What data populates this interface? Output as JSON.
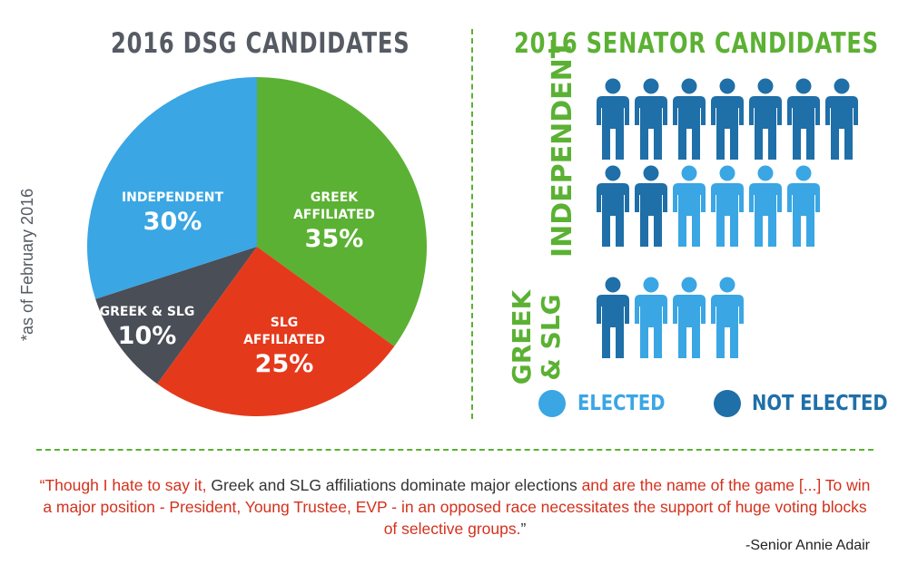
{
  "pie_title": "2016 DSG CANDIDATES",
  "as_of_note": "*as of February 2016",
  "senator_title": "2016 SENATOR CANDIDATES",
  "chart_data": [
    {
      "type": "pie",
      "title": "2016 DSG CANDIDATES",
      "slices": [
        {
          "label": "GREEK AFFILIATED",
          "label_lines": [
            "GREEK",
            "AFFILIATED"
          ],
          "value": 35,
          "display": "35%",
          "color": "#5bb133"
        },
        {
          "label": "SLG AFFILIATED",
          "label_lines": [
            "SLG",
            "AFFILIATED"
          ],
          "value": 25,
          "display": "25%",
          "color": "#e5391c"
        },
        {
          "label": "GREEK & SLG",
          "label_lines": [
            "GREEK & SLG"
          ],
          "value": 10,
          "display": "10%",
          "color": "#4a4e57"
        },
        {
          "label": "INDEPENDENT",
          "label_lines": [
            "INDEPENDENT"
          ],
          "value": 30,
          "display": "30%",
          "color": "#3aa6e4"
        }
      ]
    },
    {
      "type": "pictograph",
      "title": "2016 SENATOR CANDIDATES",
      "groups": [
        {
          "name": "INDEPENDENT",
          "total": 13,
          "rows": [
            [
              "not_elected",
              "not_elected",
              "not_elected",
              "not_elected",
              "not_elected",
              "not_elected",
              "not_elected"
            ],
            [
              "not_elected",
              "not_elected",
              "elected",
              "elected",
              "elected",
              "elected"
            ]
          ]
        },
        {
          "name": "GREEK & SLG",
          "total": 4,
          "rows": [
            [
              "not_elected",
              "elected",
              "elected",
              "elected"
            ]
          ]
        }
      ],
      "legend": [
        {
          "key": "elected",
          "label": "ELECTED",
          "color": "#3aa6e4"
        },
        {
          "key": "not_elected",
          "label": "NOT ELECTED",
          "color": "#1f6fa8"
        }
      ]
    }
  ],
  "quote": {
    "parts": [
      {
        "text": "“Though I hate to say it, ",
        "style": "red"
      },
      {
        "text": "Greek and SLG affiliations dominate major elections ",
        "style": "dark"
      },
      {
        "text": "and are the name of the game [...] To win a major position - President, Young Trustee, EVP - in an opposed race necessitates the support of huge voting blocks of selective groups.",
        "style": "red"
      },
      {
        "text": "”",
        "style": "dark"
      }
    ],
    "attribution": "-Senior Annie Adair"
  }
}
